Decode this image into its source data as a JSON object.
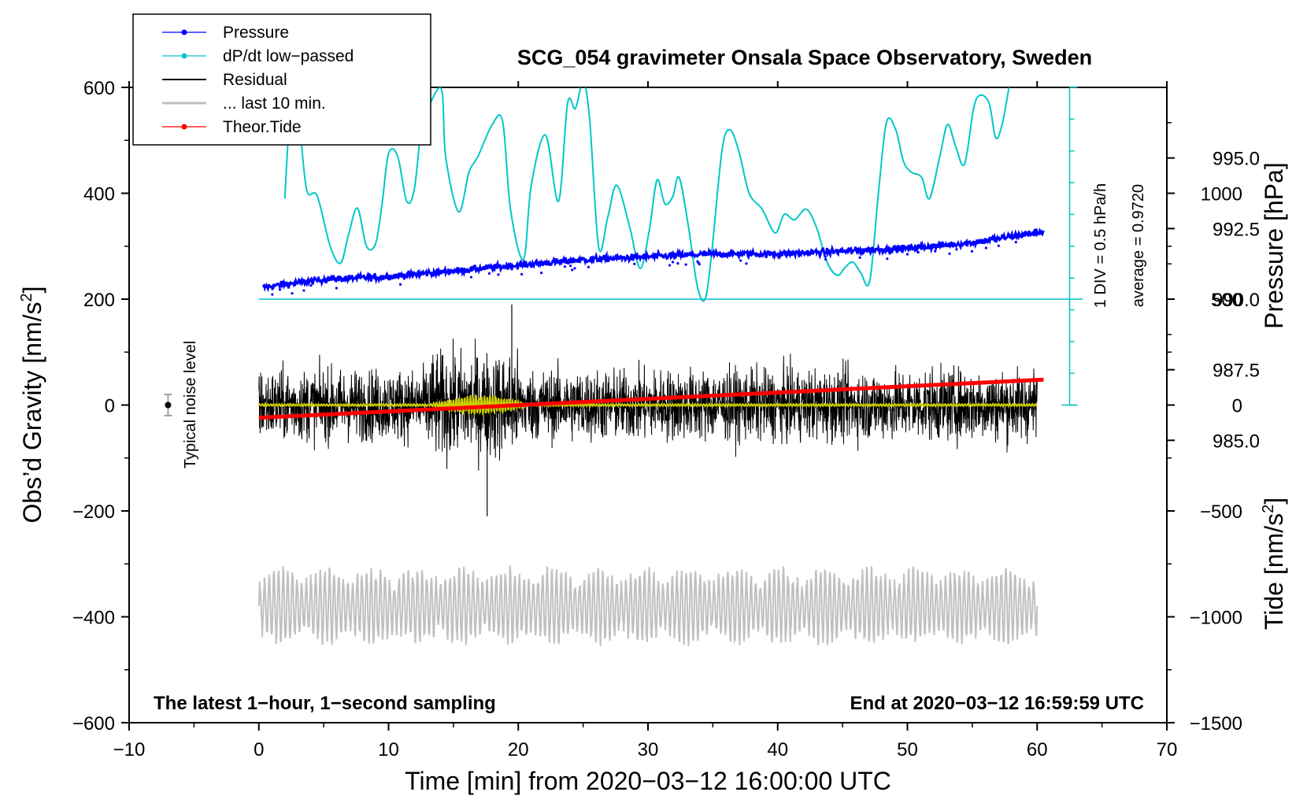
{
  "chart_data": {
    "type": "line",
    "title": "SCG_054 gravimeter Onsala Space Observatory, Sweden",
    "xlabel": "Time [min] from 2020−03−12 16:00:00 UTC",
    "ylabel_left_main": "Obs’d Gravity [nm/s",
    "ylabel_left_sup": "2",
    "ylabel_left_end": "]",
    "ylabel_right_pressure": "Pressure [hPa]",
    "ylabel_right_tide_main": "Tide [nm/s",
    "ylabel_right_tide_sup": "2",
    "ylabel_right_tide_end": "]",
    "xlim": [
      -10,
      70
    ],
    "ylim": [
      -600,
      600
    ],
    "pressure_lim": [
      975,
      997.5
    ],
    "tide_lim": [
      -1500,
      1500
    ],
    "x_ticks": [
      -10,
      0,
      10,
      20,
      30,
      40,
      50,
      60,
      70
    ],
    "x_tick_labels": [
      "−10",
      "0",
      "10",
      "20",
      "30",
      "40",
      "50",
      "60",
      "70"
    ],
    "y_ticks": [
      -600,
      -400,
      -200,
      0,
      200,
      400,
      600
    ],
    "y_tick_labels": [
      "−600",
      "−400",
      "−200",
      "0",
      "200",
      "400",
      "600"
    ],
    "pressure_ticks": [
      985.0,
      987.5,
      990.0,
      992.5,
      995.0
    ],
    "pressure_tick_labels": [
      "985.0",
      "987.5",
      "990.0",
      "992.5",
      "995.0"
    ],
    "tide_ticks": [
      -1500,
      -1000,
      -500,
      0,
      500,
      1000
    ],
    "tide_tick_labels": [
      "−1500",
      "−1000",
      "−500",
      "0",
      "500",
      "1000"
    ],
    "legend": [
      {
        "label": "Pressure",
        "color": "#0000ff",
        "marker": true
      },
      {
        "label": "dP/dt low−passed",
        "color": "#00c8c8",
        "marker": true
      },
      {
        "label": "Residual",
        "color": "#000000",
        "marker": false
      },
      {
        "label": "... last 10 min.",
        "color": "#c0c0c0",
        "marker": false
      },
      {
        "label": "Theor.Tide",
        "color": "#ff0000",
        "marker": true
      }
    ],
    "annotations": {
      "bottom_left": "The latest 1−hour, 1−second sampling",
      "bottom_right": "End at 2020−03−12 16:59:59 UTC",
      "noise_label": "Typical noise level",
      "div_label": "1 DIV = 0.5 hPa/h",
      "avg_label": "average = 0.9720"
    },
    "noise_bar": {
      "x": -7,
      "y": 0,
      "err": 20
    },
    "dpdt_baseline_hpa": 990.0,
    "dpdt_scale_divs": 10,
    "series": [
      {
        "name": "Pressure",
        "color": "#0000ff",
        "axis": "pressure",
        "x": [
          0,
          5,
          10,
          15,
          20,
          25,
          30,
          35,
          40,
          45,
          50,
          55,
          60.5
        ],
        "values": [
          990.4,
          990.7,
          990.8,
          991.0,
          991.2,
          991.4,
          991.5,
          991.6,
          991.6,
          991.7,
          991.8,
          992.0,
          992.4
        ]
      },
      {
        "name": "dP/dt low-passed",
        "color": "#00c8c8",
        "axis": "gravity",
        "x": [
          2,
          2.4,
          2.9,
          3.2,
          3.7,
          4.5,
          5.5,
          6.3,
          6.9,
          7.6,
          8.3,
          9.0,
          9.5,
          10.0,
          10.7,
          11.4,
          12.0,
          12.6,
          13.2,
          14.1,
          14.4,
          15.4,
          16.2,
          16.9,
          18.0,
          18.8,
          19.4,
          20.4,
          21.0,
          22.1,
          23.1,
          23.8,
          24.4,
          25.0,
          25.5,
          26.2,
          26.9,
          27.6,
          28.6,
          29.4,
          30.1,
          30.7,
          31.3,
          31.9,
          32.4,
          33.1,
          33.8,
          34.4,
          34.9,
          35.7,
          36.3,
          37.0,
          37.8,
          38.8,
          39.8,
          40.5,
          41.3,
          42.2,
          43.0,
          43.8,
          44.6,
          45.2,
          45.8,
          46.4,
          47.1,
          47.8,
          48.4,
          49.1,
          49.7,
          50.3,
          51.1,
          51.7,
          52.5,
          53.1,
          53.7,
          54.4,
          55.1,
          55.6,
          56.3,
          56.8,
          57.3,
          57.9
        ],
        "values": [
          390,
          550,
          610,
          520,
          405,
          395,
          300,
          268,
          320,
          372,
          300,
          305,
          380,
          475,
          470,
          385,
          410,
          540,
          570,
          595,
          470,
          365,
          440,
          470,
          530,
          535,
          370,
          275,
          415,
          510,
          385,
          570,
          560,
          610,
          540,
          298,
          355,
          415,
          335,
          258,
          330,
          425,
          380,
          393,
          430,
          340,
          225,
          200,
          285,
          480,
          520,
          480,
          400,
          370,
          325,
          360,
          350,
          370,
          335,
          270,
          245,
          260,
          270,
          250,
          235,
          410,
          535,
          520,
          460,
          440,
          430,
          390,
          470,
          530,
          490,
          455,
          560,
          585,
          570,
          505,
          530,
          610
        ]
      },
      {
        "name": "Residual",
        "color": "#000000",
        "axis": "gravity",
        "x_range": [
          0,
          60
        ],
        "typical_amplitude": 60,
        "peak_max": 190,
        "peak_min": -210
      },
      {
        "name": "Residual low-passed",
        "color": "#cccc00",
        "axis": "gravity",
        "x_range": [
          0,
          60
        ],
        "typical_amplitude": 8
      },
      {
        "name": "... last 10 min.",
        "color": "#c0c0c0",
        "axis": "gravity",
        "x_range": [
          0,
          60
        ],
        "baseline": -380,
        "typical_amplitude": 50,
        "peak_max": -255,
        "peak_min": -480
      },
      {
        "name": "Theor.Tide",
        "color": "#ff0000",
        "axis": "tide",
        "x": [
          0,
          60.5
        ],
        "values": [
          -60,
          120
        ]
      }
    ]
  }
}
